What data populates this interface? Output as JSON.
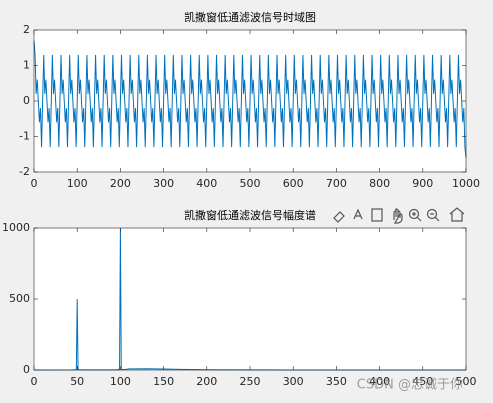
{
  "chart_data": [
    {
      "type": "line",
      "title": "凯撒窗低通滤波信号时域图",
      "color": "#0072bd",
      "xlim": [
        0,
        1000
      ],
      "xticks": [
        0,
        100,
        200,
        300,
        400,
        500,
        600,
        700,
        800,
        900,
        1000
      ],
      "ylim": [
        -2,
        2
      ],
      "yticks": [
        -2,
        -1,
        0,
        1,
        2
      ],
      "x": [
        0,
        2.5,
        5,
        7.5,
        10,
        12.5,
        15,
        17.5,
        20,
        22.5,
        25,
        27.5,
        30,
        32.5,
        35,
        37.5,
        40,
        42.5,
        45,
        47.5,
        50,
        52.5,
        55,
        57.5,
        60,
        62.5,
        65,
        67.5,
        70,
        72.5,
        75,
        77.5,
        80,
        82.5,
        85,
        87.5,
        90,
        92.5,
        95,
        97.5,
        100,
        102.5,
        105,
        107.5,
        110,
        112.5,
        115,
        117.5,
        120,
        122.5,
        125,
        127.5,
        130,
        132.5,
        135,
        137.5,
        140,
        142.5,
        145,
        147.5,
        150,
        152.5,
        155,
        157.5,
        160,
        162.5,
        165,
        167.5,
        170,
        172.5,
        175,
        177.5,
        180,
        182.5,
        185,
        187.5,
        190,
        192.5,
        195,
        197.5,
        200,
        202.5,
        205,
        207.5,
        210,
        212.5,
        215,
        217.5,
        220,
        222.5,
        225,
        227.5,
        230,
        232.5,
        235,
        237.5,
        240,
        242.5,
        245,
        247.5,
        250,
        252.5,
        255,
        257.5,
        260,
        262.5,
        265,
        267.5,
        270,
        272.5,
        275,
        277.5,
        280,
        282.5,
        285,
        287.5,
        290,
        292.5,
        295,
        297.5,
        300,
        302.5,
        305,
        307.5,
        310,
        312.5,
        315,
        317.5,
        320,
        322.5,
        325,
        327.5,
        330,
        332.5,
        335,
        337.5,
        340,
        342.5,
        345,
        347.5,
        350,
        352.5,
        355,
        357.5,
        360,
        362.5,
        365,
        367.5,
        370,
        372.5,
        375,
        377.5,
        380,
        382.5,
        385,
        387.5,
        390,
        392.5,
        395,
        397.5,
        400,
        402.5,
        405,
        407.5,
        410,
        412.5,
        415,
        417.5,
        420,
        422.5,
        425,
        427.5,
        430,
        432.5,
        435,
        437.5,
        440,
        442.5,
        445,
        447.5,
        450,
        452.5,
        455,
        457.5,
        460,
        462.5,
        465,
        467.5,
        470,
        472.5,
        475,
        477.5,
        480,
        482.5,
        485,
        487.5,
        490,
        492.5,
        495,
        497.5,
        500,
        502.5,
        505,
        507.5,
        510,
        512.5,
        515,
        517.5,
        520,
        522.5,
        525,
        527.5,
        530,
        532.5,
        535,
        537.5,
        540,
        542.5,
        545,
        547.5,
        550,
        552.5,
        555,
        557.5,
        560,
        562.5,
        565,
        567.5,
        570,
        572.5,
        575,
        577.5,
        580,
        582.5,
        585,
        587.5,
        590,
        592.5,
        595,
        597.5,
        600,
        602.5,
        605,
        607.5,
        610,
        612.5,
        615,
        617.5,
        620,
        622.5,
        625,
        627.5,
        630,
        632.5,
        635,
        637.5,
        640,
        642.5,
        645,
        647.5,
        650,
        652.5,
        655,
        657.5,
        660,
        662.5,
        665,
        667.5,
        670,
        672.5,
        675,
        677.5,
        680,
        682.5,
        685,
        687.5,
        690,
        692.5,
        695,
        697.5,
        700,
        702.5,
        705,
        707.5,
        710,
        712.5,
        715,
        717.5,
        720,
        722.5,
        725,
        727.5,
        730,
        732.5,
        735,
        737.5,
        740,
        742.5,
        745,
        747.5,
        750,
        752.5,
        755,
        757.5,
        760,
        762.5,
        765,
        767.5,
        770,
        772.5,
        775,
        777.5,
        780,
        782.5,
        785,
        787.5,
        790,
        792.5,
        795,
        797.5,
        800,
        802.5,
        805,
        807.5,
        810,
        812.5,
        815,
        817.5,
        820,
        822.5,
        825,
        827.5,
        830,
        832.5,
        835,
        837.5,
        840,
        842.5,
        845,
        847.5,
        850,
        852.5,
        855,
        857.5,
        860,
        862.5,
        865,
        867.5,
        870,
        872.5,
        875,
        877.5,
        880,
        882.5,
        885,
        887.5,
        890,
        892.5,
        895,
        897.5,
        900,
        902.5,
        905,
        907.5,
        910,
        912.5,
        915,
        917.5,
        920,
        922.5,
        925,
        927.5,
        930,
        932.5,
        935,
        937.5,
        940,
        942.5,
        945,
        947.5,
        950,
        952.5,
        955,
        957.5,
        960,
        962.5,
        965,
        967.5,
        970,
        972.5,
        975,
        977.5,
        980,
        982.5,
        985,
        987.5,
        990,
        992.5,
        995,
        997.5,
        1000
      ],
      "values": [
        1.7,
        1.3,
        0.2,
        0.6,
        0,
        -0.6,
        -0.2,
        -1.3,
        0,
        1.3,
        0.2,
        0.6,
        0,
        -0.6,
        -0.2,
        -1.3,
        0,
        1.3,
        0.2,
        0.6,
        0,
        -0.6,
        -0.2,
        -1.3,
        0,
        1.3,
        0.2,
        0.6,
        0,
        -0.6,
        -0.2,
        -1.3,
        0,
        1.3,
        0.2,
        0.6,
        0,
        -0.6,
        -0.2,
        -1.3,
        0,
        1.3,
        0.2,
        0.6,
        0,
        -0.6,
        -0.2,
        -1.3,
        0,
        1.3,
        0.2,
        0.6,
        0,
        -0.6,
        -0.2,
        -1.3,
        0,
        1.3,
        0.2,
        0.6,
        0,
        -0.6,
        -0.2,
        -1.3,
        0,
        1.3,
        0.2,
        0.6,
        0,
        -0.6,
        -0.2,
        -1.3,
        0,
        1.3,
        0.2,
        0.6,
        0,
        -0.6,
        -0.2,
        -1.3,
        0,
        1.3,
        0.2,
        0.6,
        0,
        -0.6,
        -0.2,
        -1.3,
        0,
        1.3,
        0.2,
        0.6,
        0,
        -0.6,
        -0.2,
        -1.3,
        0,
        1.3,
        0.2,
        0.6,
        0,
        -0.6,
        -0.2,
        -1.3,
        0,
        1.3,
        0.2,
        0.6,
        0,
        -0.6,
        -0.2,
        -1.3,
        0,
        1.3,
        0.2,
        0.6,
        0,
        -0.6,
        -0.2,
        -1.3,
        0,
        1.3,
        0.2,
        0.6,
        0,
        -0.6,
        -0.2,
        -1.3,
        0,
        1.3,
        0.2,
        0.6,
        0,
        -0.6,
        -0.2,
        -1.3,
        0,
        1.3,
        0.2,
        0.6,
        0,
        -0.6,
        -0.2,
        -1.3,
        0,
        1.3,
        0.2,
        0.6,
        0,
        -0.6,
        -0.2,
        -1.3,
        0,
        1.3,
        0.2,
        0.6,
        0,
        -0.6,
        -0.2,
        -1.3,
        0,
        1.3,
        0.2,
        0.6,
        0,
        -0.6,
        -0.2,
        -1.3,
        0,
        1.3,
        0.2,
        0.6,
        0,
        -0.6,
        -0.2,
        -1.3,
        0,
        1.3,
        0.2,
        0.6,
        0,
        -0.6,
        -0.2,
        -1.3,
        0,
        1.3,
        0.2,
        0.6,
        0,
        -0.6,
        -0.2,
        -1.3,
        0,
        1.3,
        0.2,
        0.6,
        0,
        -0.6,
        -0.2,
        -1.3,
        0,
        1.3,
        0.2,
        0.6,
        0,
        -0.6,
        -0.2,
        -1.3,
        0,
        1.3,
        0.2,
        0.6,
        0,
        -0.6,
        -0.2,
        -1.3,
        0,
        1.3,
        0.2,
        0.6,
        0,
        -0.6,
        -0.2,
        -1.3,
        0,
        1.3,
        0.2,
        0.6,
        0,
        -0.6,
        -0.2,
        -1.3,
        0,
        1.3,
        0.2,
        0.6,
        0,
        -0.6,
        -0.2,
        -1.3,
        0,
        1.3,
        0.2,
        0.6,
        0,
        -0.6,
        -0.2,
        -1.3,
        0,
        1.3,
        0.2,
        0.6,
        0,
        -0.6,
        -0.2,
        -1.3,
        0,
        1.3,
        0.2,
        0.6,
        0,
        -0.6,
        -0.2,
        -1.3,
        0,
        1.3,
        0.2,
        0.6,
        0,
        -0.6,
        -0.2,
        -1.3,
        0,
        1.3,
        0.2,
        0.6,
        0,
        -0.6,
        -0.2,
        -1.3,
        0,
        1.3,
        0.2,
        0.6,
        0,
        -0.6,
        -0.2,
        -1.3,
        0,
        1.3,
        0.2,
        0.6,
        0,
        -0.6,
        -0.2,
        -1.3,
        0,
        1.3,
        0.2,
        0.6,
        0,
        -0.6,
        -0.2,
        -1.3,
        0,
        1.3,
        0.2,
        0.6,
        0,
        -0.6,
        -0.2,
        -1.3,
        0,
        1.3,
        0.2,
        0.6,
        0,
        -0.6,
        -0.2,
        -1.3,
        0,
        1.3,
        0.2,
        0.6,
        0,
        -0.6,
        -0.2,
        -1.3,
        0,
        1.3,
        0.2,
        0.6,
        0,
        -0.6,
        -0.2,
        -1.3,
        0,
        1.3,
        0.2,
        0.6,
        0,
        -0.6,
        -0.2,
        -1.3,
        0,
        1.3,
        0.2,
        0.6,
        0,
        -0.6,
        -0.2,
        -1.3,
        0,
        1.3,
        0.2,
        0.6,
        0,
        -0.6,
        -0.2,
        -1.3,
        0,
        1.3,
        0.2,
        0.6,
        0,
        -0.6,
        -0.2,
        -1.3,
        0,
        1.3,
        0.2,
        0.6,
        0,
        -0.6,
        -0.2,
        -1.3,
        0,
        1.3,
        0.2,
        0.6,
        0,
        -0.6,
        -0.2,
        -1.3,
        0,
        1.3,
        0.2,
        0.6,
        0,
        -0.6,
        -0.2,
        -1.3,
        0,
        1.3,
        0.2,
        0.6,
        0,
        -0.6,
        -0.2,
        -1.3,
        -1.6
      ]
    },
    {
      "type": "line",
      "title": "凯撒窗低通滤波信号幅度谱",
      "color": "#0072bd",
      "xlim": [
        0,
        500
      ],
      "xticks": [
        0,
        50,
        100,
        150,
        200,
        250,
        300,
        350,
        400,
        450,
        500
      ],
      "ylim": [
        0,
        1000
      ],
      "yticks": [
        0,
        500,
        1000
      ],
      "x": [
        0,
        45,
        49,
        50,
        51,
        55,
        95,
        99,
        100,
        101,
        105,
        110,
        130,
        150,
        170,
        200,
        250,
        300,
        350,
        400,
        450,
        500
      ],
      "values": [
        0,
        1,
        3,
        500,
        3,
        1,
        1,
        4,
        1000,
        4,
        3,
        8,
        9,
        7,
        4,
        2,
        1,
        0,
        0,
        0,
        0,
        0
      ]
    }
  ],
  "watermark": "CSDN @忠诚于你"
}
